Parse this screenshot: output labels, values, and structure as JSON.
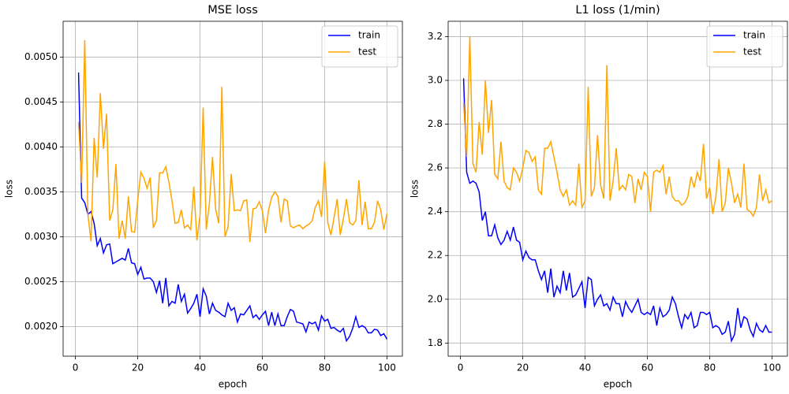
{
  "chart_data": [
    {
      "type": "line",
      "title": "MSE loss",
      "xlabel": "epoch",
      "ylabel": "loss",
      "x": [
        1,
        2,
        3,
        4,
        5,
        6,
        7,
        8,
        9,
        10,
        11,
        12,
        13,
        14,
        15,
        16,
        17,
        18,
        19,
        20,
        21,
        22,
        23,
        24,
        25,
        26,
        27,
        28,
        29,
        30,
        31,
        32,
        33,
        34,
        35,
        36,
        37,
        38,
        39,
        40,
        41,
        42,
        43,
        44,
        45,
        46,
        47,
        48,
        49,
        50,
        51,
        52,
        53,
        54,
        55,
        56,
        57,
        58,
        59,
        60,
        61,
        62,
        63,
        64,
        65,
        66,
        67,
        68,
        69,
        70,
        71,
        72,
        73,
        74,
        75,
        76,
        77,
        78,
        79,
        80,
        81,
        82,
        83,
        84,
        85,
        86,
        87,
        88,
        89,
        90,
        91,
        92,
        93,
        94,
        95,
        96,
        97,
        98,
        99,
        100
      ],
      "series": [
        {
          "name": "train",
          "color": "#0000ff",
          "values": [
            0.00483,
            0.00343,
            0.00338,
            0.00325,
            0.00328,
            0.00315,
            0.0029,
            0.00298,
            0.00282,
            0.00291,
            0.00292,
            0.0027,
            0.00272,
            0.00274,
            0.00276,
            0.00274,
            0.00287,
            0.00271,
            0.0027,
            0.00258,
            0.00266,
            0.00253,
            0.00254,
            0.00254,
            0.0025,
            0.00238,
            0.00251,
            0.00226,
            0.00254,
            0.00223,
            0.00228,
            0.00226,
            0.00247,
            0.00228,
            0.00236,
            0.00215,
            0.0022,
            0.00226,
            0.00236,
            0.00211,
            0.00242,
            0.00234,
            0.00214,
            0.00226,
            0.00218,
            0.00216,
            0.00213,
            0.00211,
            0.00226,
            0.00218,
            0.00221,
            0.00205,
            0.00214,
            0.00213,
            0.00218,
            0.00223,
            0.0021,
            0.00213,
            0.00208,
            0.00213,
            0.00217,
            0.00201,
            0.00216,
            0.00201,
            0.00214,
            0.00201,
            0.00201,
            0.00211,
            0.00219,
            0.00217,
            0.00205,
            0.00204,
            0.00203,
            0.00194,
            0.00205,
            0.00203,
            0.00205,
            0.00196,
            0.00212,
            0.00206,
            0.00208,
            0.00198,
            0.00199,
            0.00196,
            0.00194,
            0.00198,
            0.00184,
            0.00189,
            0.00198,
            0.00211,
            0.00199,
            0.00201,
            0.00199,
            0.00193,
            0.00193,
            0.00197,
            0.00196,
            0.0019,
            0.00192,
            0.00186
          ]
        },
        {
          "name": "test",
          "color": "#ffa500",
          "values": [
            0.00428,
            0.0036,
            0.00519,
            0.00325,
            0.00295,
            0.0041,
            0.00366,
            0.0046,
            0.00398,
            0.00437,
            0.00318,
            0.0033,
            0.00381,
            0.00298,
            0.00318,
            0.00298,
            0.00345,
            0.00306,
            0.00305,
            0.00341,
            0.00372,
            0.00365,
            0.00354,
            0.00366,
            0.0031,
            0.00318,
            0.00371,
            0.00371,
            0.00378,
            0.00361,
            0.0034,
            0.00315,
            0.00316,
            0.0033,
            0.0031,
            0.00313,
            0.00308,
            0.00356,
            0.00296,
            0.00324,
            0.00444,
            0.00308,
            0.00337,
            0.00389,
            0.00331,
            0.00315,
            0.00467,
            0.003,
            0.00311,
            0.0037,
            0.00329,
            0.0033,
            0.00329,
            0.0034,
            0.00341,
            0.00294,
            0.00331,
            0.00332,
            0.00339,
            0.00329,
            0.00304,
            0.0033,
            0.00344,
            0.0035,
            0.00345,
            0.00316,
            0.00342,
            0.0034,
            0.00312,
            0.0031,
            0.00312,
            0.00313,
            0.00309,
            0.00312,
            0.00314,
            0.00318,
            0.00333,
            0.0034,
            0.00322,
            0.00384,
            0.00316,
            0.00302,
            0.00321,
            0.00342,
            0.00302,
            0.0032,
            0.00342,
            0.00316,
            0.00313,
            0.00318,
            0.00363,
            0.00313,
            0.00339,
            0.00309,
            0.00309,
            0.00316,
            0.0034,
            0.0033,
            0.00308,
            0.00326
          ]
        }
      ],
      "xlim": [
        -3.95,
        104.95
      ],
      "xticks": [
        0,
        20,
        40,
        60,
        80,
        100
      ],
      "ylim": [
        0.00167,
        0.0054
      ],
      "yticks": [
        {
          "value": 0.002,
          "label": "0.0020"
        },
        {
          "value": 0.0025,
          "label": "0.0025"
        },
        {
          "value": 0.003,
          "label": "0.0030"
        },
        {
          "value": 0.0035,
          "label": "0.0035"
        },
        {
          "value": 0.004,
          "label": "0.0040"
        },
        {
          "value": 0.0045,
          "label": "0.0045"
        },
        {
          "value": 0.005,
          "label": "0.0050"
        }
      ],
      "grid": true,
      "legend": "upper right"
    },
    {
      "type": "line",
      "title": "L1 loss (1/min)",
      "xlabel": "epoch",
      "ylabel": "loss",
      "x": [
        1,
        2,
        3,
        4,
        5,
        6,
        7,
        8,
        9,
        10,
        11,
        12,
        13,
        14,
        15,
        16,
        17,
        18,
        19,
        20,
        21,
        22,
        23,
        24,
        25,
        26,
        27,
        28,
        29,
        30,
        31,
        32,
        33,
        34,
        35,
        36,
        37,
        38,
        39,
        40,
        41,
        42,
        43,
        44,
        45,
        46,
        47,
        48,
        49,
        50,
        51,
        52,
        53,
        54,
        55,
        56,
        57,
        58,
        59,
        60,
        61,
        62,
        63,
        64,
        65,
        66,
        67,
        68,
        69,
        70,
        71,
        72,
        73,
        74,
        75,
        76,
        77,
        78,
        79,
        80,
        81,
        82,
        83,
        84,
        85,
        86,
        87,
        88,
        89,
        90,
        91,
        92,
        93,
        94,
        95,
        96,
        97,
        98,
        99,
        100
      ],
      "series": [
        {
          "name": "train",
          "color": "#0000ff",
          "values": [
            3.01,
            2.58,
            2.53,
            2.54,
            2.53,
            2.49,
            2.36,
            2.4,
            2.29,
            2.29,
            2.34,
            2.28,
            2.25,
            2.27,
            2.31,
            2.27,
            2.33,
            2.27,
            2.26,
            2.18,
            2.22,
            2.19,
            2.18,
            2.18,
            2.13,
            2.09,
            2.13,
            2.03,
            2.14,
            2.01,
            2.06,
            2.03,
            2.13,
            2.04,
            2.12,
            2.01,
            2.02,
            2.05,
            2.08,
            1.96,
            2.1,
            2.09,
            1.97,
            2.0,
            2.02,
            1.97,
            1.98,
            1.95,
            2.01,
            1.98,
            1.98,
            1.92,
            1.99,
            1.96,
            1.94,
            1.97,
            2.0,
            1.94,
            1.93,
            1.94,
            1.93,
            1.97,
            1.88,
            1.96,
            1.92,
            1.93,
            1.95,
            2.01,
            1.98,
            1.92,
            1.87,
            1.93,
            1.91,
            1.94,
            1.87,
            1.88,
            1.94,
            1.94,
            1.93,
            1.94,
            1.87,
            1.88,
            1.87,
            1.84,
            1.85,
            1.9,
            1.81,
            1.84,
            1.96,
            1.87,
            1.92,
            1.91,
            1.86,
            1.83,
            1.89,
            1.86,
            1.85,
            1.88,
            1.85,
            1.85
          ]
        },
        {
          "name": "test",
          "color": "#ffa500",
          "values": [
            2.9,
            2.65,
            3.2,
            2.62,
            2.58,
            2.81,
            2.66,
            3.0,
            2.76,
            2.91,
            2.57,
            2.55,
            2.72,
            2.54,
            2.51,
            2.5,
            2.6,
            2.58,
            2.54,
            2.6,
            2.68,
            2.67,
            2.63,
            2.65,
            2.5,
            2.48,
            2.69,
            2.69,
            2.72,
            2.65,
            2.58,
            2.5,
            2.47,
            2.5,
            2.43,
            2.45,
            2.43,
            2.62,
            2.42,
            2.45,
            2.97,
            2.47,
            2.51,
            2.75,
            2.52,
            2.46,
            3.07,
            2.45,
            2.54,
            2.69,
            2.5,
            2.52,
            2.5,
            2.57,
            2.56,
            2.44,
            2.55,
            2.5,
            2.58,
            2.56,
            2.4,
            2.58,
            2.59,
            2.58,
            2.61,
            2.48,
            2.56,
            2.47,
            2.45,
            2.45,
            2.43,
            2.44,
            2.47,
            2.56,
            2.51,
            2.58,
            2.54,
            2.71,
            2.46,
            2.51,
            2.39,
            2.47,
            2.64,
            2.4,
            2.44,
            2.6,
            2.53,
            2.44,
            2.48,
            2.42,
            2.62,
            2.41,
            2.4,
            2.38,
            2.42,
            2.57,
            2.45,
            2.5,
            2.44,
            2.45
          ]
        }
      ],
      "xlim": [
        -3.95,
        104.95
      ],
      "xticks": [
        0,
        20,
        40,
        60,
        80,
        100
      ],
      "ylim": [
        1.74,
        3.27
      ],
      "yticks": [
        1.8,
        {
          "value": 2,
          "label": "2.0"
        },
        2.2,
        2.4,
        2.6,
        2.8,
        {
          "value": 3,
          "label": "3.0"
        },
        3.2
      ],
      "grid": true,
      "legend": "upper right"
    }
  ]
}
